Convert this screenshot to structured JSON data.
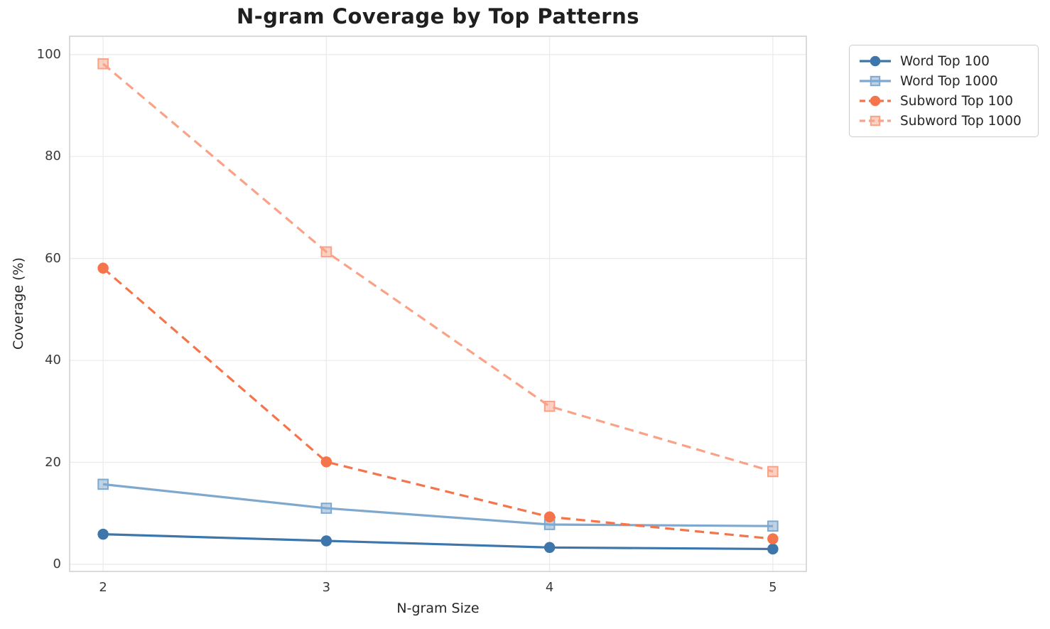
{
  "chart_data": {
    "type": "line",
    "title": "N-gram Coverage by Top Patterns",
    "xlabel": "N-gram Size",
    "ylabel": "Coverage (%)",
    "x": [
      2,
      3,
      4,
      5
    ],
    "series": [
      {
        "name": "Word Top 100",
        "values": [
          5.9,
          4.6,
          3.3,
          3.0
        ],
        "color": "#3d76ab",
        "marker": "circle",
        "line_style": "solid"
      },
      {
        "name": "Word Top 1000",
        "values": [
          15.7,
          11.0,
          7.8,
          7.5
        ],
        "color": "#7fa8cf",
        "marker": "square",
        "line_style": "solid"
      },
      {
        "name": "Subword Top 100",
        "values": [
          58.1,
          20.1,
          9.3,
          5.0
        ],
        "color": "#f4754b",
        "marker": "circle",
        "line_style": "dashed"
      },
      {
        "name": "Subword Top 1000",
        "values": [
          98.2,
          61.3,
          31.0,
          18.2
        ],
        "color": "#f9a287",
        "marker": "square",
        "line_style": "dashed"
      }
    ],
    "xticks": [
      2,
      3,
      4,
      5
    ],
    "yticks": [
      0,
      20,
      40,
      60,
      80,
      100
    ],
    "xlim": [
      1.85,
      5.15
    ],
    "ylim": [
      -1.4,
      103.6
    ],
    "grid": true,
    "legend_position": "upper-right-outside",
    "grid_color": "#ebebeb",
    "spine_color": "#d6d6d6",
    "background_color": "#ffffff"
  }
}
